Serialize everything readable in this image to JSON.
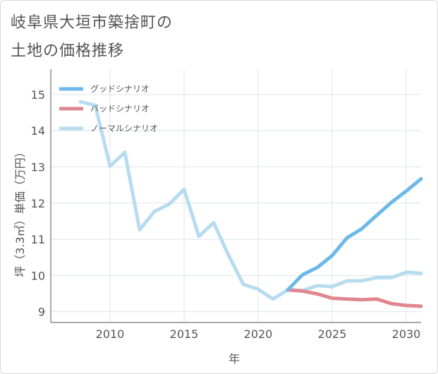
{
  "title_line1": "岐阜県大垣市築捨町の",
  "title_line2": "土地の価格推移",
  "chart_data": {
    "type": "line",
    "xlabel": "年",
    "ylabel": "坪（3.3㎡）単価（万円）",
    "xlim": [
      2006,
      2031
    ],
    "ylim": [
      8.7,
      15.7
    ],
    "xticks": [
      2010,
      2015,
      2020,
      2025,
      2030
    ],
    "yticks": [
      9,
      10,
      11,
      12,
      13,
      14,
      15
    ],
    "grid": true,
    "legend_position": "top-left",
    "series": [
      {
        "name": "グッドシナリオ",
        "color": "#6cb8e8",
        "x": [
          2022,
          2023,
          2024,
          2025,
          2026,
          2027,
          2028,
          2029,
          2030,
          2031
        ],
        "values": [
          9.6,
          10.02,
          10.22,
          10.55,
          11.04,
          11.29,
          11.66,
          12.02,
          12.33,
          12.67
        ]
      },
      {
        "name": "バッドシナリオ",
        "color": "#e0868f",
        "x": [
          2022,
          2023,
          2024,
          2025,
          2026,
          2027,
          2028,
          2029,
          2030,
          2031
        ],
        "values": [
          9.6,
          9.57,
          9.49,
          9.37,
          9.35,
          9.33,
          9.35,
          9.22,
          9.17,
          9.15
        ]
      },
      {
        "name": "ノーマルシナリオ",
        "color": "#b7dcef",
        "x": [
          2008,
          2009,
          2010,
          2011,
          2012,
          2013,
          2014,
          2015,
          2016,
          2017,
          2018,
          2019,
          2020,
          2021,
          2022,
          2023,
          2024,
          2025,
          2026,
          2027,
          2028,
          2029,
          2030,
          2031
        ],
        "values": [
          14.8,
          14.7,
          13.02,
          13.4,
          11.26,
          11.77,
          11.97,
          12.38,
          11.08,
          11.46,
          10.56,
          9.75,
          9.62,
          9.35,
          9.6,
          9.58,
          9.72,
          9.69,
          9.85,
          9.85,
          9.94,
          9.94,
          10.09,
          10.06
        ]
      }
    ]
  }
}
